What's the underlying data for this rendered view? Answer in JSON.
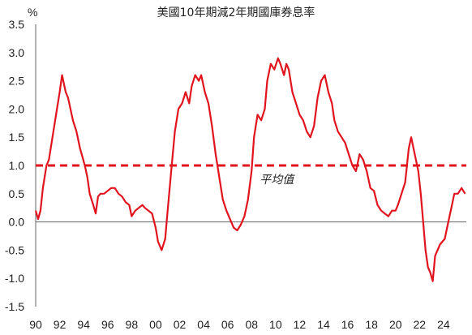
{
  "chart_data": {
    "type": "line",
    "title": "美國10年期減2年期國庫券息率",
    "ylabel": "%",
    "xlabel": "",
    "ylim": [
      -1.5,
      3.5
    ],
    "xlim": [
      1990,
      2025.9
    ],
    "grid": false,
    "legend": "none",
    "y_ticks": [
      3.5,
      3.0,
      2.5,
      2.0,
      1.5,
      1.0,
      0.5,
      0.0,
      -0.5,
      -1.0,
      -1.5
    ],
    "y_tick_labels": [
      "3.5",
      "3.0",
      "2.5",
      "2.0",
      "1.5",
      "1.0",
      "0.5",
      "0.0",
      "-0.5",
      "-1.0",
      "-1.5"
    ],
    "x_ticks": [
      1990,
      1992,
      1994,
      1996,
      1998,
      2000,
      2002,
      2004,
      2006,
      2008,
      2010,
      2012,
      2014,
      2016,
      2018,
      2020,
      2022,
      2024
    ],
    "x_tick_labels": [
      "90",
      "92",
      "94",
      "96",
      "98",
      "00",
      "02",
      "04",
      "06",
      "08",
      "10",
      "12",
      "14",
      "16",
      "18",
      "20",
      "22",
      "24"
    ],
    "series": [
      {
        "color": "#e1141e",
        "x": [
          1990.0,
          1990.2,
          1990.4,
          1990.6,
          1990.9,
          1991.1,
          1991.4,
          1991.7,
          1992.0,
          1992.2,
          1992.5,
          1992.7,
          1992.9,
          1993.1,
          1993.4,
          1993.7,
          1993.9,
          1994.1,
          1994.3,
          1994.5,
          1994.8,
          1995.0,
          1995.2,
          1995.4,
          1995.7,
          1996.0,
          1996.3,
          1996.6,
          1996.9,
          1997.2,
          1997.5,
          1997.8,
          1998.0,
          1998.3,
          1998.6,
          1998.9,
          1999.1,
          1999.4,
          1999.7,
          2000.0,
          2000.2,
          2000.5,
          2000.8,
          2001.0,
          2001.3,
          2001.6,
          2001.9,
          2002.2,
          2002.5,
          2002.8,
          2003.0,
          2003.3,
          2003.6,
          2003.8,
          2004.1,
          2004.4,
          2004.7,
          2005.0,
          2005.3,
          2005.6,
          2005.9,
          2006.2,
          2006.5,
          2006.8,
          2007.1,
          2007.4,
          2007.7,
          2008.0,
          2008.2,
          2008.5,
          2008.8,
          2009.1,
          2009.3,
          2009.6,
          2009.9,
          2010.2,
          2010.4,
          2010.7,
          2010.9,
          2011.1,
          2011.4,
          2011.7,
          2012.0,
          2012.3,
          2012.6,
          2012.9,
          2013.2,
          2013.5,
          2013.8,
          2014.1,
          2014.4,
          2014.7,
          2014.9,
          2015.2,
          2015.5,
          2015.8,
          2016.1,
          2016.4,
          2016.7,
          2017.0,
          2017.3,
          2017.6,
          2017.9,
          2018.2,
          2018.5,
          2018.8,
          2019.1,
          2019.4,
          2019.7,
          2020.0,
          2020.2,
          2020.5,
          2020.8,
          2021.1,
          2021.3,
          2021.6,
          2021.9,
          2022.1,
          2022.3,
          2022.5,
          2022.7,
          2022.9,
          2023.1,
          2023.3,
          2023.5,
          2023.7,
          2023.9,
          2024.1,
          2024.3,
          2024.5,
          2024.7,
          2024.9,
          2025.2,
          2025.5,
          2025.8
        ],
        "y": [
          0.2,
          0.05,
          0.2,
          0.6,
          1.0,
          1.1,
          1.5,
          1.9,
          2.3,
          2.6,
          2.3,
          2.2,
          2.0,
          1.8,
          1.6,
          1.3,
          1.15,
          1.0,
          0.8,
          0.5,
          0.3,
          0.15,
          0.45,
          0.5,
          0.5,
          0.55,
          0.6,
          0.6,
          0.5,
          0.45,
          0.35,
          0.3,
          0.1,
          0.2,
          0.25,
          0.3,
          0.25,
          0.2,
          0.15,
          -0.1,
          -0.35,
          -0.5,
          -0.3,
          0.2,
          0.9,
          1.6,
          2.0,
          2.1,
          2.3,
          2.1,
          2.4,
          2.6,
          2.5,
          2.6,
          2.3,
          2.1,
          1.7,
          1.2,
          0.8,
          0.4,
          0.2,
          0.05,
          -0.1,
          -0.15,
          -0.05,
          0.1,
          0.4,
          0.9,
          1.5,
          1.9,
          1.8,
          2.0,
          2.5,
          2.8,
          2.7,
          2.9,
          2.8,
          2.6,
          2.8,
          2.7,
          2.3,
          2.1,
          1.9,
          1.8,
          1.6,
          1.5,
          1.7,
          2.2,
          2.5,
          2.6,
          2.3,
          2.1,
          1.8,
          1.6,
          1.5,
          1.4,
          1.2,
          1.0,
          0.9,
          1.2,
          1.1,
          0.9,
          0.6,
          0.55,
          0.3,
          0.2,
          0.15,
          0.1,
          0.2,
          0.2,
          0.3,
          0.5,
          0.7,
          1.3,
          1.5,
          1.2,
          0.9,
          0.5,
          0.0,
          -0.5,
          -0.8,
          -0.9,
          -1.05,
          -0.6,
          -0.5,
          -0.4,
          -0.35,
          -0.3,
          -0.1,
          0.1,
          0.3,
          0.5,
          0.5,
          0.6,
          0.5
        ]
      }
    ],
    "reference_lines": [
      {
        "y": 1.0,
        "label": "平均值",
        "color": "#e1141e",
        "style": "dashed"
      },
      {
        "y": 0.0,
        "label": "",
        "color": "#666666",
        "style": "solid"
      }
    ]
  }
}
